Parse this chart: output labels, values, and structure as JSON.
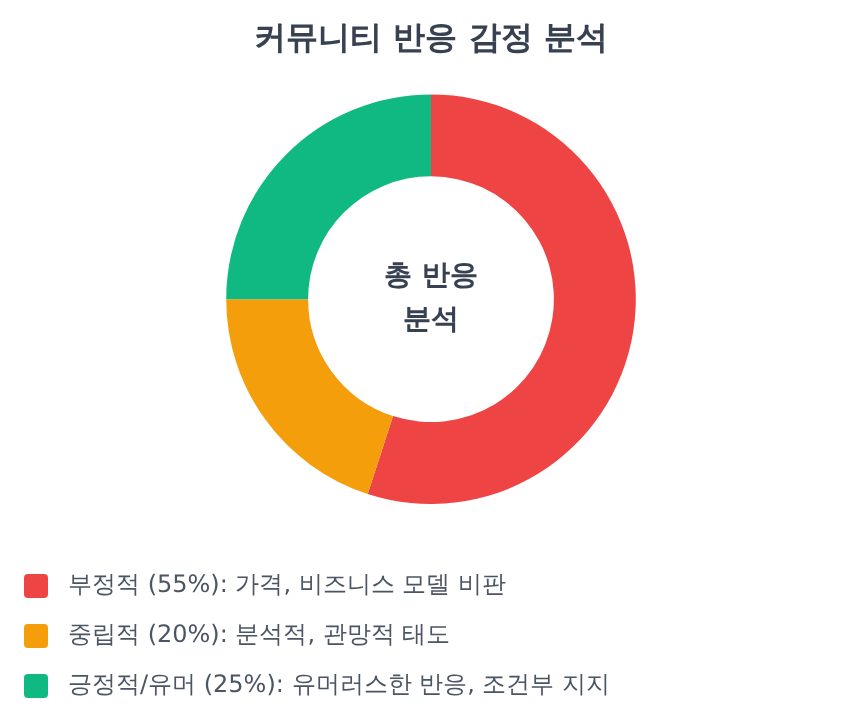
{
  "chart_data": {
    "type": "donut",
    "title": "커뮤니티 반응 감정 분석",
    "categories": [
      "부정적 (55%): 가격, 비즈니스 모델 비판",
      "중립적 (20%): 분석적, 관망적 태도",
      "긍정적/유머 (25%): 유머러스한 반응, 조건부 지지"
    ],
    "values": [
      55,
      20,
      25
    ],
    "colors": [
      "#ef4444",
      "#f59e0b",
      "#10b981"
    ],
    "annotations": [
      "총 반응 분석"
    ],
    "legend": "bottom left"
  }
}
